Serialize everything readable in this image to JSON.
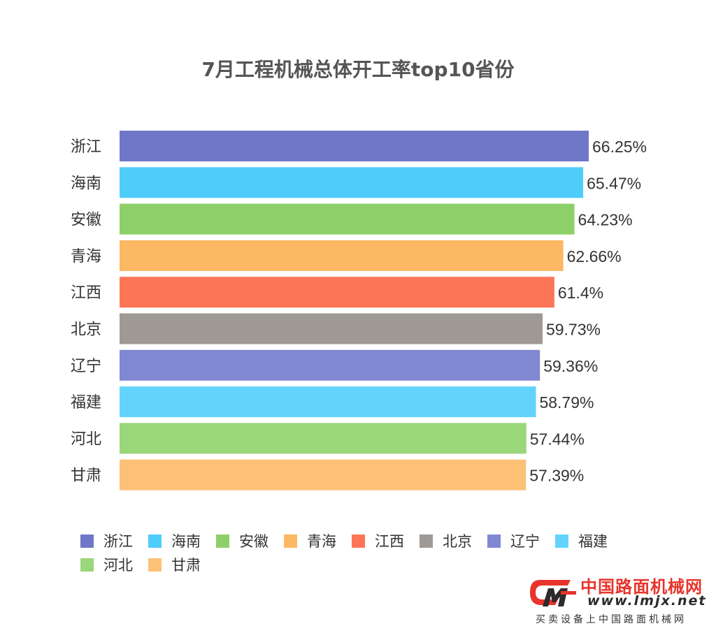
{
  "chart_data": {
    "type": "bar",
    "orientation": "horizontal",
    "title": "7月工程机械总体开工率top10省份",
    "categories": [
      "浙江",
      "海南",
      "安徽",
      "青海",
      "江西",
      "北京",
      "辽宁",
      "福建",
      "河北",
      "甘肃"
    ],
    "values": [
      66.25,
      65.47,
      64.23,
      62.66,
      61.4,
      59.73,
      59.36,
      58.79,
      57.44,
      57.39
    ],
    "value_labels": [
      "66.25%",
      "65.47%",
      "64.23%",
      "62.66%",
      "61.4%",
      "59.73%",
      "59.36%",
      "58.79%",
      "57.44%",
      "57.39%"
    ],
    "colors": [
      "#6f78c8",
      "#4fcdfa",
      "#8dd069",
      "#fcb862",
      "#fc7556",
      "#9e9994",
      "#8088d1",
      "#63d3fb",
      "#9ad67a",
      "#fdc077"
    ],
    "xlim": [
      0,
      66.25
    ],
    "grid": false,
    "legend_position": "bottom"
  },
  "watermark": {
    "name_cn": "中国路面机械网",
    "url": "www.lmjx.net",
    "slogan": "买卖设备上中国路面机械网"
  }
}
